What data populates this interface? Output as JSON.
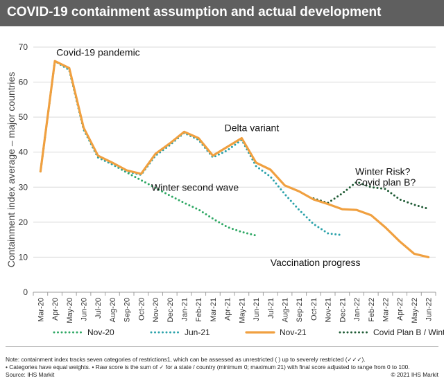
{
  "header": {
    "title": "COVID-19 containment assumption and actual development"
  },
  "chart_data": {
    "type": "line",
    "ylabel": "Containment index average – major countries",
    "ylim": [
      0,
      70
    ],
    "yticks": [
      0,
      10,
      20,
      30,
      40,
      50,
      60,
      70
    ],
    "grid": "horizontal",
    "legend_position": "bottom",
    "categories": [
      "Mar-20",
      "Apr-20",
      "May-20",
      "Jun-20",
      "Jul-20",
      "Aug-20",
      "Sep-20",
      "Oct-20",
      "Nov-20",
      "Dec-20",
      "Jan-21",
      "Feb-21",
      "Mar-21",
      "Apr-21",
      "May-21",
      "Jun-21",
      "Jul-21",
      "Aug-21",
      "Sep-21",
      "Oct-21",
      "Nov-21",
      "Dec-21",
      "Jan-22",
      "Feb-22",
      "Mar-22",
      "Apr-22",
      "May-22",
      "Jun-22"
    ],
    "series": [
      {
        "name": "Nov-20",
        "color": "#2ea864",
        "style": "dotted",
        "values": [
          34.5,
          66,
          63.5,
          46.5,
          38.5,
          36.5,
          34.2,
          32.0,
          29.8,
          27.6,
          25.5,
          23.6,
          21.0,
          18.6,
          17.2,
          16.2,
          null,
          null,
          null,
          null,
          null,
          null,
          null,
          null,
          null,
          null,
          null,
          null
        ]
      },
      {
        "name": "Jun-21",
        "color": "#2aa2aa",
        "style": "dotted",
        "values": [
          34.5,
          66,
          63.5,
          46.5,
          38.5,
          36.5,
          34.5,
          33.5,
          39.0,
          42.0,
          45.5,
          43.5,
          38.5,
          40.5,
          43.5,
          36.0,
          33.0,
          28.0,
          23.5,
          19.5,
          16.8,
          16.3,
          null,
          null,
          null,
          null,
          null,
          null
        ]
      },
      {
        "name": "Nov-21",
        "color": "#f0a040",
        "style": "solid",
        "values": [
          34.5,
          66,
          64,
          47,
          39,
          37,
          34.8,
          33.8,
          39.5,
          42.5,
          45.8,
          44,
          39,
          41.5,
          44,
          37,
          35,
          30.5,
          28.8,
          26.5,
          25.2,
          23.7,
          23.5,
          22.0,
          18.5,
          14.5,
          11.0,
          10.0
        ]
      },
      {
        "name": "Covid Plan B / Winter risk?",
        "color": "#1f5b35",
        "style": "dotted",
        "values": [
          null,
          null,
          null,
          null,
          null,
          null,
          null,
          null,
          null,
          null,
          null,
          null,
          null,
          null,
          null,
          null,
          null,
          null,
          null,
          26.8,
          25.5,
          28.2,
          31.5,
          30.0,
          29.5,
          26.5,
          25.0,
          23.8
        ]
      }
    ],
    "annotations": [
      {
        "text": "Covid-19 pandemic",
        "x": "Apr-20",
        "y": 67.5
      },
      {
        "text": "Delta variant",
        "x": "Apr-21",
        "y": 46
      },
      {
        "text": "Winter second wave",
        "x": "Nov-20",
        "y": 29
      },
      {
        "text": "Winter Risk?",
        "x": "Jan-22",
        "y": 33.5
      },
      {
        "text": "Covid plan B?",
        "x": "Jan-22",
        "y": 30.5
      },
      {
        "text": "Vaccination progress",
        "x": "Jul-21",
        "y": 7.5
      }
    ]
  },
  "footer": {
    "note_line1": "Note: containment index tracks seven categories of restrictions1, which can be assessed as unrestricted ( ) up to severely restricted (✓✓✓).",
    "note_line2": "• Categories have equal weights. • Raw score is the sum of ✓ for a state / country (minimum 0; maximum 21) with final score adjusted to range from 0 to 100.",
    "source": "Source: IHS Markit",
    "copyright": "© 2021 IHS Markit"
  }
}
